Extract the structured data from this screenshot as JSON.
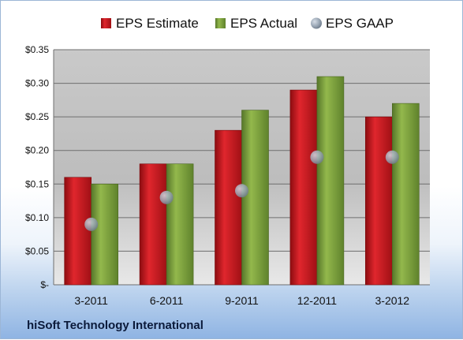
{
  "chart_data": {
    "type": "bar",
    "title": "",
    "xlabel": "",
    "ylabel": "",
    "categories": [
      "3-2011",
      "6-2011",
      "9-2011",
      "12-2011",
      "3-2012"
    ],
    "series": [
      {
        "name": "EPS Estimate",
        "type": "bar",
        "color": "#c8161d",
        "values": [
          0.16,
          0.18,
          0.23,
          0.29,
          0.25
        ]
      },
      {
        "name": "EPS Actual",
        "type": "bar",
        "color": "#7fa33a",
        "values": [
          0.15,
          0.18,
          0.26,
          0.31,
          0.27
        ]
      },
      {
        "name": "EPS GAAP",
        "type": "scatter",
        "color": "#9aa7b5",
        "values": [
          0.09,
          0.13,
          0.14,
          0.19,
          0.19
        ]
      }
    ],
    "ylim": [
      0,
      0.35
    ],
    "yticks": [
      0,
      0.05,
      0.1,
      0.15,
      0.2,
      0.25,
      0.3,
      0.35
    ],
    "ytick_labels": [
      "$-",
      "$0.05",
      "$0.10",
      "$0.15",
      "$0.20",
      "$0.25",
      "$0.30",
      "$0.35"
    ],
    "grid": true,
    "legend": "top"
  },
  "footer": {
    "company": "hiSoft Technology International"
  }
}
